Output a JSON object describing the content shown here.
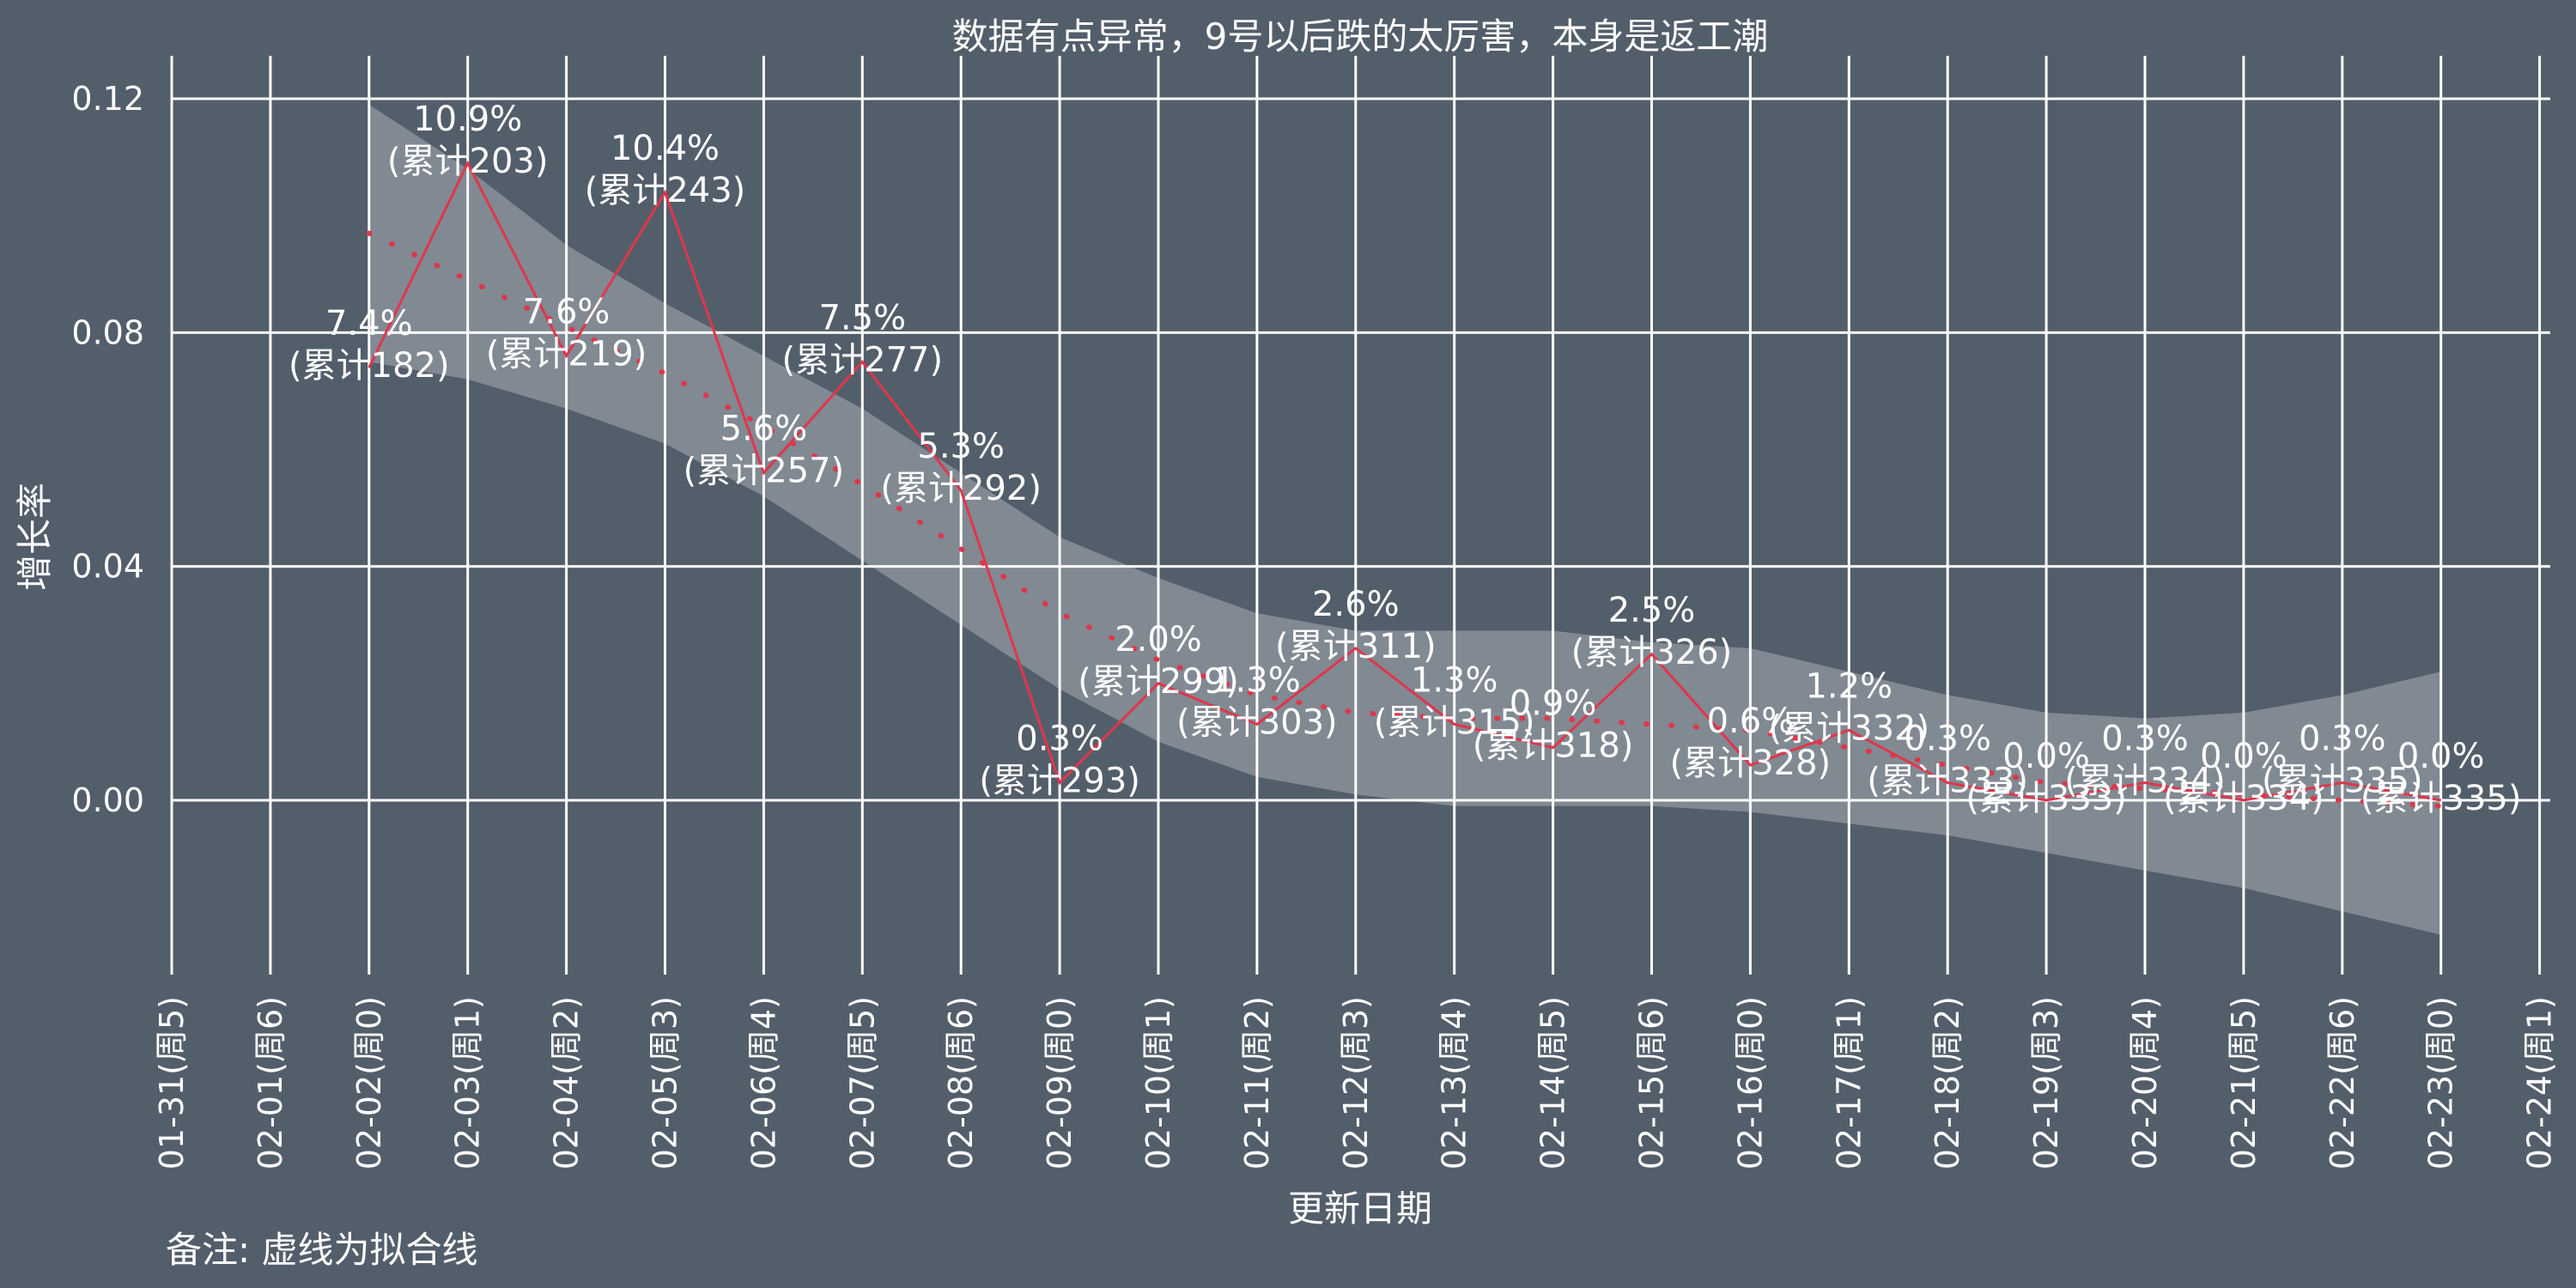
{
  "chart_data": {
    "type": "line",
    "title": "数据有点异常，9号以后跌的太厉害，本身是返工潮",
    "xlabel": "更新日期",
    "ylabel": "增长率",
    "note": "备注: 虚线为拟合线",
    "ylim": [
      -0.028,
      0.125
    ],
    "y_ticks": [
      "0.00",
      "0.04",
      "0.08",
      "0.12"
    ],
    "grid": true,
    "x_ticks": [
      "01-31(周5)",
      "02-01(周6)",
      "02-02(周0)",
      "02-03(周1)",
      "02-04(周2)",
      "02-05(周3)",
      "02-06(周4)",
      "02-07(周5)",
      "02-08(周6)",
      "02-09(周0)",
      "02-10(周1)",
      "02-11(周2)",
      "02-12(周3)",
      "02-13(周4)",
      "02-14(周5)",
      "02-15(周6)",
      "02-16(周0)",
      "02-17(周1)",
      "02-18(周2)",
      "02-19(周3)",
      "02-20(周4)",
      "02-21(周5)",
      "02-22(周6)",
      "02-23(周0)",
      "02-24(周1)"
    ],
    "series": [
      {
        "x": [
          "02-02(周0)",
          "02-03(周1)",
          "02-04(周2)",
          "02-05(周3)",
          "02-06(周4)",
          "02-07(周5)",
          "02-08(周6)",
          "02-09(周0)",
          "02-10(周1)",
          "02-11(周2)",
          "02-12(周3)",
          "02-13(周4)",
          "02-14(周5)",
          "02-15(周6)",
          "02-16(周0)",
          "02-17(周1)",
          "02-18(周2)",
          "02-19(周3)",
          "02-20(周4)",
          "02-21(周5)",
          "02-22(周6)",
          "02-23(周0)"
        ],
        "values": [
          0.074,
          0.109,
          0.076,
          0.104,
          0.056,
          0.075,
          0.053,
          0.003,
          0.02,
          0.013,
          0.026,
          0.013,
          0.009,
          0.025,
          0.006,
          0.012,
          0.003,
          0.0,
          0.003,
          0.0,
          0.003,
          0.0
        ],
        "pct_labels": [
          "7.4%",
          "10.9%",
          "7.6%",
          "10.4%",
          "5.6%",
          "7.5%",
          "5.3%",
          "0.3%",
          "2.0%",
          "1.3%",
          "2.6%",
          "1.3%",
          "0.9%",
          "2.5%",
          "0.6%",
          "1.2%",
          "0.3%",
          "0.0%",
          "0.3%",
          "0.0%",
          "0.3%",
          "0.0%"
        ],
        "cum_labels": [
          "(累计182)",
          "(累计203)",
          "(累计219)",
          "(累计243)",
          "(累计257)",
          "(累计277)",
          "(累计292)",
          "(累计293)",
          "(累计299)",
          "(累计303)",
          "(累计311)",
          "(累计315)",
          "(累计318)",
          "(累计326)",
          "(累计328)",
          "(累计332)",
          "(累计333)",
          "(累计333)",
          "(累计334)",
          "(累计334)",
          "(累计335)",
          "(累计335)"
        ]
      }
    ],
    "fit": {
      "x": [
        "02-02(周0)",
        "02-03(周1)",
        "02-04(周2)",
        "02-05(周3)",
        "02-06(周4)",
        "02-07(周5)",
        "02-08(周6)",
        "02-09(周0)",
        "02-10(周1)",
        "02-11(周2)",
        "02-12(周3)",
        "02-13(周4)",
        "02-14(周5)",
        "02-15(周6)",
        "02-16(周0)",
        "02-17(周1)",
        "02-18(周2)",
        "02-19(周3)",
        "02-20(周4)",
        "02-21(周5)",
        "02-22(周6)",
        "02-23(周0)"
      ],
      "values": [
        0.097,
        0.089,
        0.081,
        0.073,
        0.064,
        0.054,
        0.043,
        0.032,
        0.024,
        0.018,
        0.015,
        0.014,
        0.014,
        0.013,
        0.012,
        0.009,
        0.006,
        0.003,
        0.002,
        0.001,
        0.0,
        -0.001
      ],
      "lower": [
        0.075,
        0.072,
        0.067,
        0.061,
        0.052,
        0.041,
        0.03,
        0.019,
        0.01,
        0.004,
        0.001,
        -0.001,
        -0.001,
        -0.001,
        -0.002,
        -0.004,
        -0.006,
        -0.009,
        -0.012,
        -0.015,
        -0.019,
        -0.023
      ],
      "upper": [
        0.119,
        0.108,
        0.095,
        0.085,
        0.076,
        0.067,
        0.056,
        0.045,
        0.038,
        0.032,
        0.029,
        0.029,
        0.029,
        0.027,
        0.026,
        0.022,
        0.018,
        0.015,
        0.014,
        0.015,
        0.018,
        0.022
      ]
    },
    "colors": {
      "background": "#535e6b",
      "grid": "#ffffff",
      "line": "#e0364a",
      "band": "#a7adb5",
      "text": "#ffffff"
    }
  }
}
